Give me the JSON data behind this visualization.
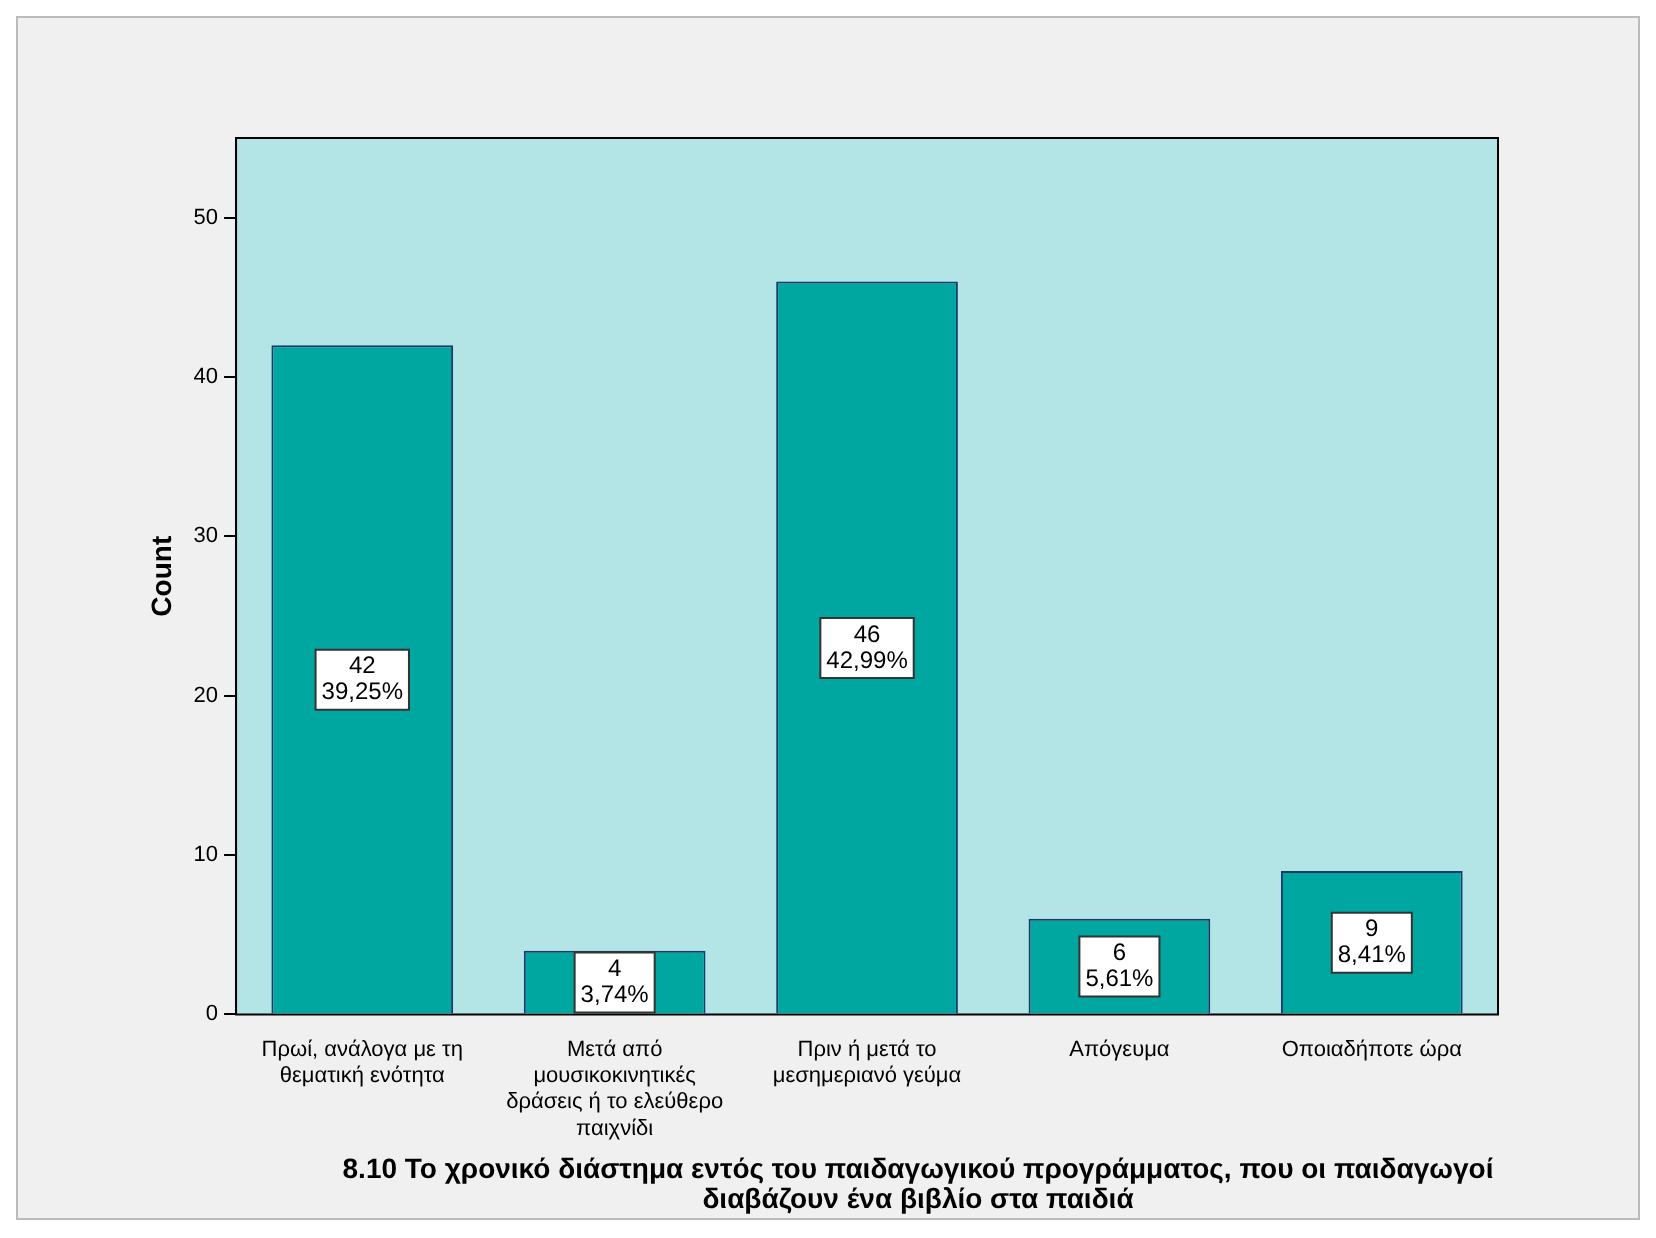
{
  "chart_data": {
    "type": "bar",
    "title": "8.10 Το χρονικό διάστημα εντός του παιδαγωγικού προγράμματος, που οι παιδαγωγοί διαβάζουν ένα βιβλίο στα παιδιά",
    "ylabel": "Count",
    "categories": [
      "Πρωί, ανάλογα με τη θεματική ενότητα",
      "Μετά από μουσικοκινητικές δράσεις ή το ελεύθερο παιχνίδι",
      "Πριν ή μετά το μεσημεριανό γεύμα",
      "Απόγευμα",
      "Οποιαδήποτε ώρα"
    ],
    "values": [
      42,
      4,
      46,
      6,
      9
    ],
    "value_labels": [
      "42\n39,25%",
      "4\n3,74%",
      "46\n42,99%",
      "6\n5,61%",
      "9\n8,41%"
    ],
    "color": "#00a6a0",
    "ylim": [
      0,
      55
    ],
    "yticks": [
      0,
      10,
      20,
      30,
      40,
      50
    ],
    "grid": false,
    "legend": false
  }
}
